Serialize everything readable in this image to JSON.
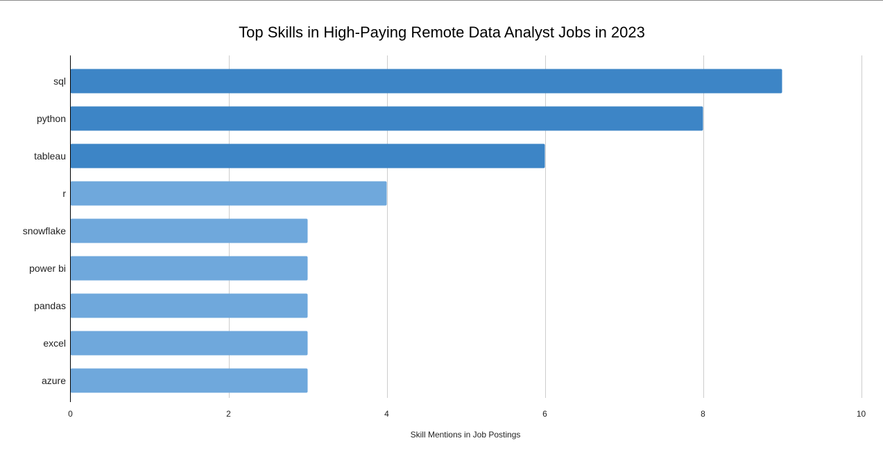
{
  "chart_data": {
    "type": "bar",
    "orientation": "horizontal",
    "title": "Top Skills in High-Paying Remote Data Analyst Jobs in 2023",
    "xlabel": "Skill Mentions in Job Postings",
    "ylabel": "",
    "categories": [
      "sql",
      "python",
      "tableau",
      "r",
      "snowflake",
      "power bi",
      "pandas",
      "excel",
      "azure"
    ],
    "values": [
      9,
      8,
      6,
      4,
      3,
      3,
      3,
      3,
      3
    ],
    "xlim": [
      0,
      10
    ],
    "xticks": [
      0,
      2,
      4,
      6,
      8,
      10
    ],
    "grid": true,
    "legend": "none",
    "highlight_count": 3,
    "colors": {
      "highlight": "#3d85c6",
      "normal": "#6fa8dc",
      "grid": "#cccccc",
      "axis": "#000000"
    }
  }
}
